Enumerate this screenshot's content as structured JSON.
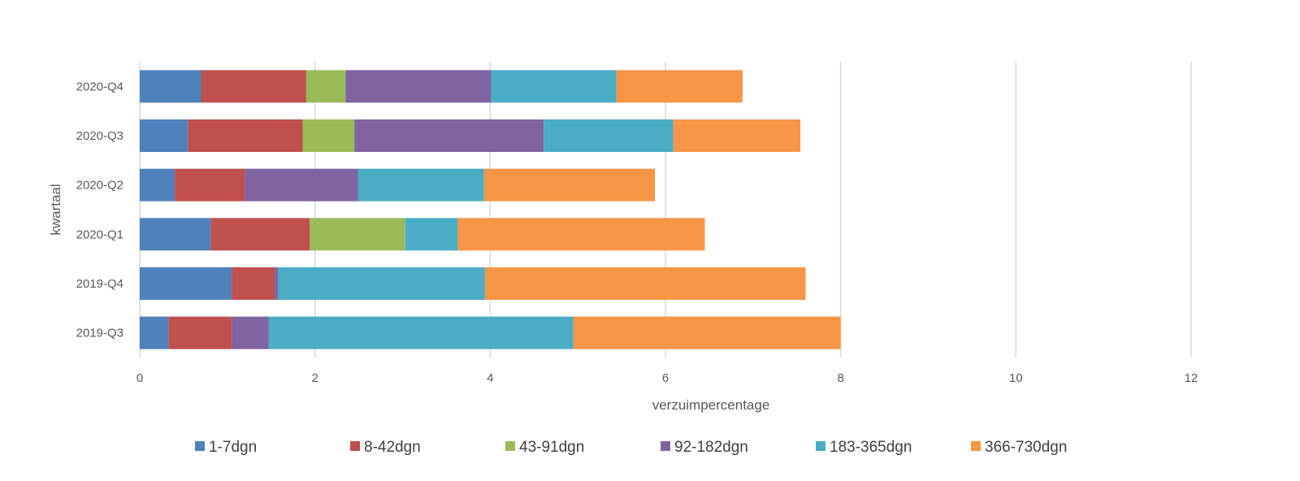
{
  "chart_data": {
    "type": "bar",
    "orientation": "horizontal",
    "stacked": true,
    "title": "",
    "xlabel": "verzuimpercentage",
    "ylabel": "kwartaal",
    "xlim": [
      0,
      12
    ],
    "xticks": [
      0,
      2,
      4,
      6,
      8,
      10,
      12
    ],
    "grid": "vertical",
    "legend_position": "bottom",
    "categories": [
      "2020-Q4",
      "2020-Q3",
      "2020-Q2",
      "2020-Q1",
      "2019-Q4",
      "2019-Q3"
    ],
    "series": [
      {
        "name": "1-7dgn",
        "color": "#4f81bd",
        "values": [
          0.7,
          0.55,
          0.4,
          0.81,
          1.05,
          0.33
        ]
      },
      {
        "name": "8-42dgn",
        "color": "#c0504d",
        "values": [
          1.2,
          1.31,
          0.8,
          1.13,
          0.49,
          0.72
        ]
      },
      {
        "name": "43-91dgn",
        "color": "#9bbb59",
        "values": [
          0.45,
          0.59,
          0.0,
          1.09,
          0.0,
          0.0
        ]
      },
      {
        "name": "92-182dgn",
        "color": "#8064a2",
        "values": [
          1.66,
          2.16,
          1.29,
          0.0,
          0.04,
          0.42
        ]
      },
      {
        "name": "183-365dgn",
        "color": "#4bacc6",
        "values": [
          1.43,
          1.48,
          1.44,
          0.6,
          2.36,
          3.48
        ]
      },
      {
        "name": "366-730dgn",
        "color": "#f79646",
        "values": [
          1.44,
          1.45,
          1.95,
          2.82,
          3.66,
          3.05
        ]
      }
    ]
  }
}
